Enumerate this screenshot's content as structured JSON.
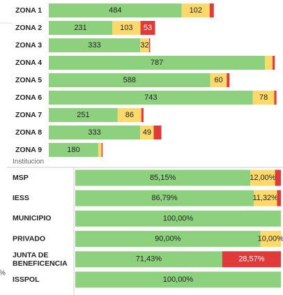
{
  "header_text": "Institucion",
  "edge_text": "%",
  "chart_data": [
    {
      "type": "bar",
      "orientation": "horizontal",
      "stacked": true,
      "categories": [
        "ZONA 1",
        "ZONA 2",
        "ZONA 3",
        "ZONA 4",
        "ZONA 5",
        "ZONA 6",
        "ZONA 7",
        "ZONA 8",
        "ZONA 9"
      ],
      "xlim": [
        0,
        830
      ],
      "series": [
        {
          "color": "#8dd17e",
          "values": [
            484,
            231,
            333,
            787,
            588,
            743,
            251,
            333,
            180
          ]
        },
        {
          "color": "#fcd96a",
          "values": [
            102,
            103,
            32,
            28,
            60,
            78,
            86,
            49,
            12
          ]
        },
        {
          "color": "#e03a3a",
          "values": [
            15,
            53,
            4,
            8,
            10,
            8,
            8,
            28,
            4
          ]
        }
      ]
    },
    {
      "type": "bar",
      "orientation": "horizontal",
      "stacked": true,
      "categories": [
        "MSP",
        "IESS",
        "MUNICIPIO",
        "PRIVADO",
        "JUNTA DE BENEFICENCIA",
        "ISSPOL"
      ],
      "xlim": [
        0,
        100
      ],
      "series": [
        {
          "color": "#8dd17e",
          "values": [
            85.15,
            86.79,
            100,
            90,
            71.43,
            100
          ],
          "value_labels": [
            "85,15%",
            "86,79%",
            "100,00%",
            "90,00%",
            "71,43%",
            "100,00%"
          ]
        },
        {
          "color": "#fcd96a",
          "values": [
            12,
            11.32,
            0,
            10,
            0,
            0
          ],
          "value_labels": [
            "12,00%",
            "11,32%",
            null,
            "10,00%",
            null,
            null
          ]
        },
        {
          "color": "#e03a3a",
          "values": [
            2.85,
            1.89,
            0,
            0,
            28.57,
            0
          ],
          "value_labels": [
            null,
            null,
            null,
            null,
            "28,57%",
            null
          ]
        }
      ]
    }
  ]
}
